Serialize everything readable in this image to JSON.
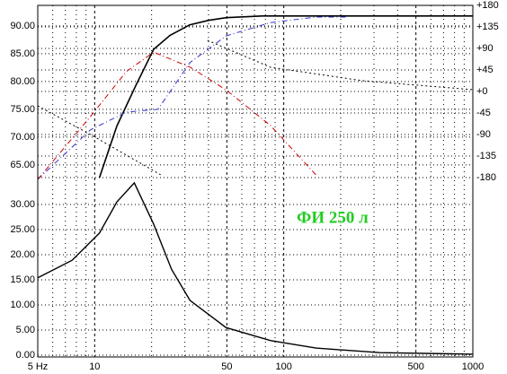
{
  "chart_data": [
    {
      "type": "line",
      "xscale": "log",
      "xlim": [
        5,
        1000
      ],
      "ylim": [
        62.4,
        93.7
      ],
      "yticks": [
        {
          "value": 65,
          "label": "65.00"
        },
        {
          "value": 70,
          "label": "70.00"
        },
        {
          "value": 75,
          "label": "75.00"
        },
        {
          "value": 80,
          "label": "80.00"
        },
        {
          "value": 85,
          "label": "85.00"
        },
        {
          "value": 90,
          "label": "90.00"
        }
      ],
      "y2lim": [
        -183.75,
        180
      ],
      "y2ticks": [
        {
          "value": 180,
          "label": "+180"
        },
        {
          "value": 135,
          "label": "+135"
        },
        {
          "value": 90,
          "label": "+90"
        },
        {
          "value": 45,
          "label": "+45"
        },
        {
          "value": 0,
          "label": "+0"
        },
        {
          "value": -45,
          "label": "-45"
        },
        {
          "value": -90,
          "label": "-90"
        },
        {
          "value": -135,
          "label": "-135"
        },
        {
          "value": -180,
          "label": "-180"
        }
      ],
      "series": [
        {
          "color": "#000000",
          "dash": "solid",
          "width": 1.6,
          "x": [
            10.6,
            13.1,
            16.5,
            20.5,
            25,
            31.8,
            40,
            50,
            77,
            100,
            200,
            500,
            1000
          ],
          "values": [
            62.7,
            72,
            79.3,
            85.8,
            88.3,
            90.2,
            91,
            91.5,
            91.8,
            91.8,
            91.8,
            91.8,
            91.8
          ]
        },
        {
          "color": "#3333cc",
          "dash": "dashdot",
          "width": 1,
          "x": [
            5,
            9.5,
            14.7,
            21.6,
            31.9,
            49.5,
            85,
            148,
            217
          ],
          "values": [
            62.4,
            71.3,
            74.5,
            75,
            83.4,
            88.2,
            90.6,
            91.6,
            91.6
          ]
        },
        {
          "color": "#cc0000",
          "dash": "dashdot",
          "width": 1,
          "x": [
            5,
            9.5,
            14.7,
            20.5,
            31.9,
            49.5,
            85,
            148
          ],
          "values": [
            62.4,
            73.7,
            81.8,
            85.3,
            82.6,
            78.5,
            72.1,
            63.2
          ]
        },
        {
          "color": "#000000",
          "dash": "dotted",
          "width": 1,
          "axis": "y2",
          "x": [
            5,
            9.5,
            22.3,
            22.3,
            39.5,
            85,
            261,
            1000
          ],
          "values": [
            -30,
            -90,
            -174,
            null,
            107,
            50.6,
            22.5,
            3.75
          ]
        }
      ]
    },
    {
      "type": "line",
      "xscale": "log",
      "xlim": [
        5,
        1000
      ],
      "ylim": [
        -0.36,
        35
      ],
      "yticks": [
        {
          "value": 0,
          "label": "0.00"
        },
        {
          "value": 5,
          "label": "5.00"
        },
        {
          "value": 10,
          "label": "10.00"
        },
        {
          "value": 15,
          "label": "15.00"
        },
        {
          "value": 20,
          "label": "20.00"
        },
        {
          "value": 25,
          "label": "25.00"
        },
        {
          "value": 30,
          "label": "30.00"
        }
      ],
      "xticks": [
        {
          "value": 5,
          "label": "5 Hz"
        },
        10,
        50,
        100,
        500,
        1000
      ],
      "minor_xticks": [
        6,
        7,
        8,
        9,
        20,
        30,
        40,
        60,
        70,
        80,
        90,
        200,
        300,
        400,
        600,
        700,
        800,
        900
      ],
      "annotation": "ФИ 250 л",
      "series": [
        {
          "color": "#000000",
          "dash": "solid",
          "width": 1.4,
          "x": [
            5,
            7.6,
            10.6,
            13.1,
            16.2,
            20.5,
            25.5,
            31.9,
            49.5,
            85,
            148,
            323,
            1000
          ],
          "values": [
            15.4,
            18.9,
            24.3,
            30.5,
            34.3,
            26.1,
            17.1,
            10.9,
            5.5,
            2.9,
            1.4,
            0.5,
            0.2
          ]
        }
      ]
    }
  ]
}
